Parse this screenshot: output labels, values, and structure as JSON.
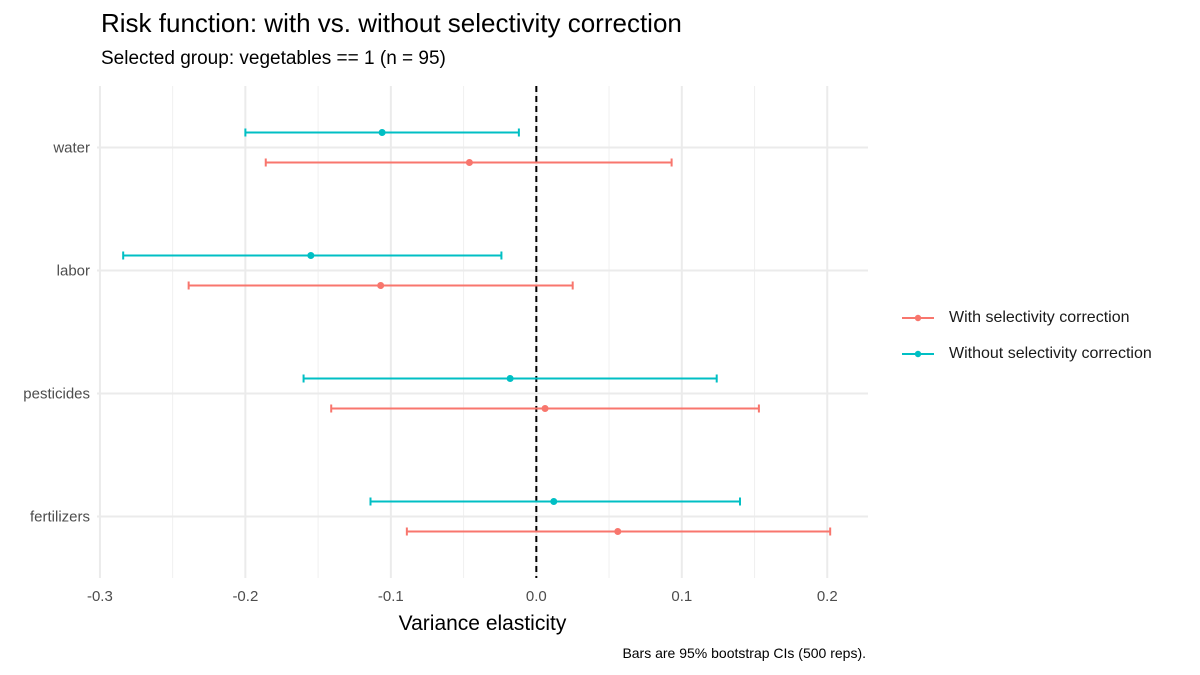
{
  "chart_data": {
    "type": "errorbar",
    "title": "Risk function: with vs. without selectivity correction",
    "subtitle": "Selected group: vegetables == 1 (n = 95)",
    "xlabel": "Variance elasticity",
    "ylabel": "",
    "caption": "Bars are 95% bootstrap CIs (500 reps).",
    "xlim": [
      -0.302,
      0.228
    ],
    "xticks": [
      -0.3,
      -0.2,
      -0.1,
      0.0,
      0.1,
      0.2
    ],
    "xtick_labels": [
      "-0.3",
      "-0.2",
      "-0.1",
      "0.0",
      "0.1",
      "0.2"
    ],
    "categories": [
      "water",
      "labor",
      "pesticides",
      "fertilizers"
    ],
    "reference_line": {
      "x": 0,
      "style": "dashed"
    },
    "grid": true,
    "legend_position": "right",
    "series": [
      {
        "name": "With selectivity correction",
        "color": "#F8766D",
        "points": [
          {
            "category": "water",
            "estimate": -0.046,
            "lower": -0.186,
            "upper": 0.093
          },
          {
            "category": "labor",
            "estimate": -0.107,
            "lower": -0.239,
            "upper": 0.025
          },
          {
            "category": "pesticides",
            "estimate": 0.006,
            "lower": -0.141,
            "upper": 0.153
          },
          {
            "category": "fertilizers",
            "estimate": 0.056,
            "lower": -0.089,
            "upper": 0.202
          }
        ]
      },
      {
        "name": "Without selectivity correction",
        "color": "#00BFC4",
        "points": [
          {
            "category": "water",
            "estimate": -0.106,
            "lower": -0.2,
            "upper": -0.012
          },
          {
            "category": "labor",
            "estimate": -0.155,
            "lower": -0.284,
            "upper": -0.024
          },
          {
            "category": "pesticides",
            "estimate": -0.018,
            "lower": -0.16,
            "upper": 0.124
          },
          {
            "category": "fertilizers",
            "estimate": 0.012,
            "lower": -0.114,
            "upper": 0.14
          }
        ]
      }
    ]
  }
}
